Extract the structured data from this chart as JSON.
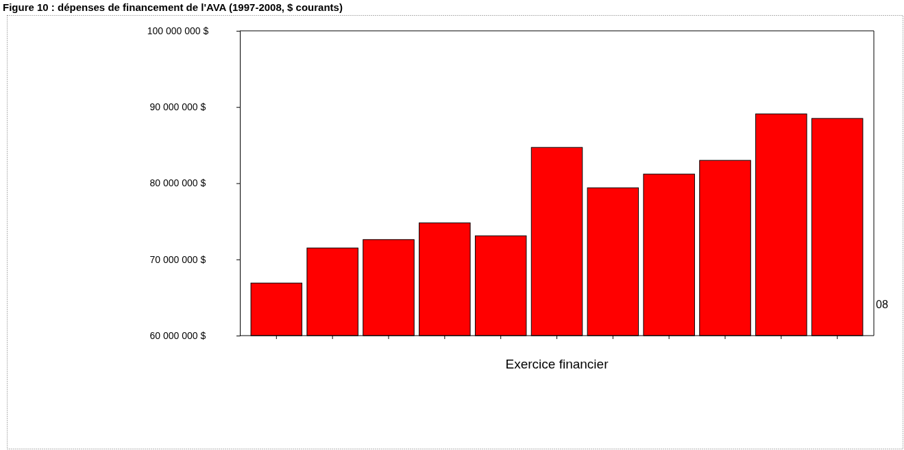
{
  "chart_data": {
    "type": "bar",
    "title": "Figure 10 : dépenses de financement de l'AVA (1997-2008, $ courants)",
    "xlabel": "Exercice financier",
    "categories": [
      null,
      null,
      null,
      null,
      null,
      null,
      null,
      null,
      null,
      null,
      null
    ],
    "values": [
      66900000,
      71500000,
      72600000,
      74800000,
      73100000,
      84700000,
      79400000,
      81200000,
      83000000,
      89100000,
      88500000
    ],
    "color": "#ff0000",
    "ylim": [
      60000000,
      100000000
    ],
    "yticks": [
      {
        "value": 60000000,
        "label": "60 000 000 $"
      },
      {
        "value": 70000000,
        "label": "70 000 000 $"
      },
      {
        "value": 80000000,
        "label": "80 000 000 $"
      },
      {
        "value": 90000000,
        "label": "90 000 000 $"
      },
      {
        "value": 100000000,
        "label": "100 000 000 $"
      }
    ],
    "annotations": [
      "08"
    ]
  }
}
